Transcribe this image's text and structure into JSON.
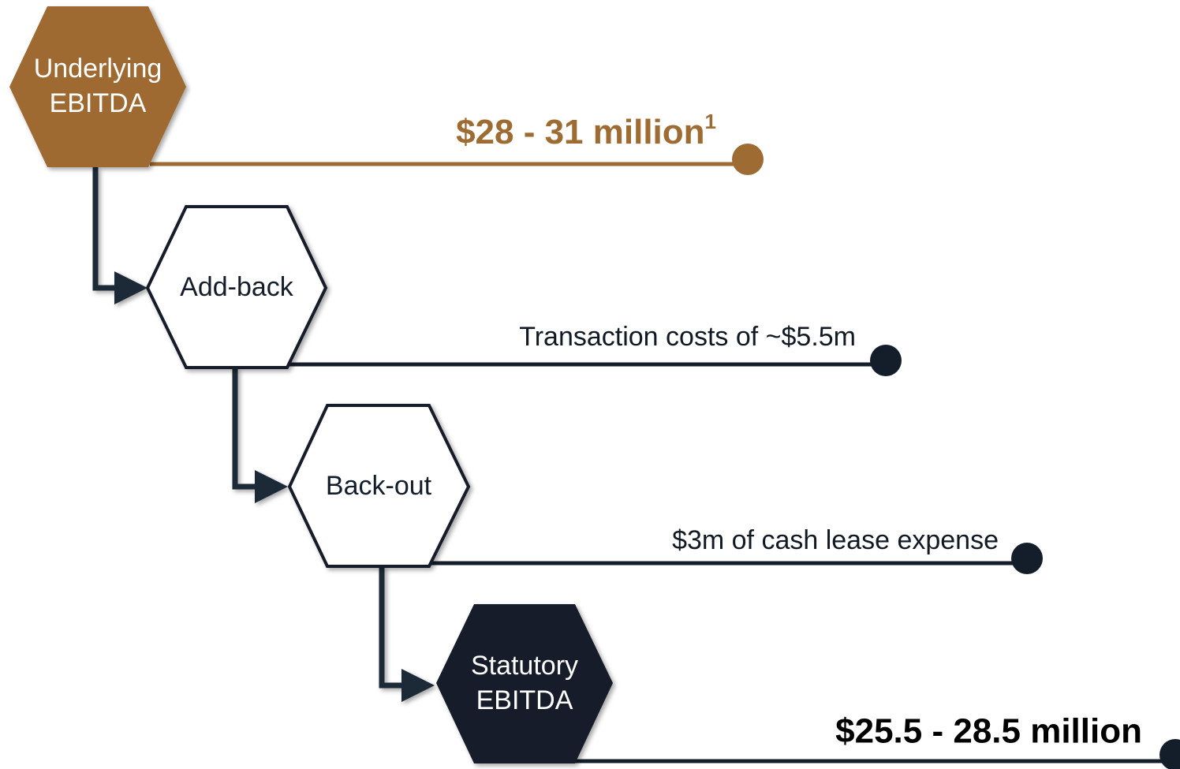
{
  "nodes": [
    {
      "label": [
        "Underlying",
        "EBITDA"
      ],
      "value": "$28 - 31 million",
      "footnote": "1"
    },
    {
      "label": [
        "Add-back"
      ],
      "value": "Transaction costs of ~$5.5m"
    },
    {
      "label": [
        "Back-out"
      ],
      "value": "$3m of cash lease expense"
    },
    {
      "label": [
        "Statutory",
        "EBITDA"
      ],
      "value": "$25.5 - 28.5 million"
    }
  ]
}
